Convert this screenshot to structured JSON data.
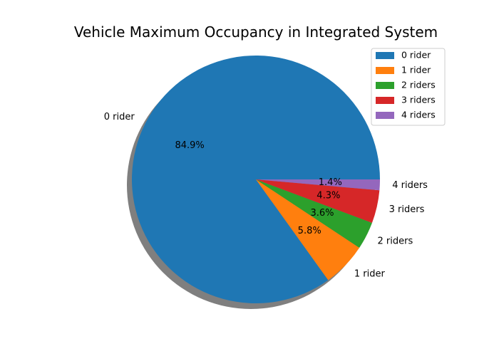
{
  "chart_data": {
    "type": "pie",
    "title": "Vehicle Maximum Occupancy in Integrated System",
    "categories": [
      "0 rider",
      "1 rider",
      "2 riders",
      "3 riders",
      "4 riders"
    ],
    "values": [
      84.9,
      5.8,
      3.6,
      4.3,
      1.4
    ],
    "value_labels": [
      "84.9%",
      "5.8%",
      "3.6%",
      "4.3%",
      "1.4%"
    ],
    "colors": [
      "#1f77b4",
      "#ff7f0e",
      "#2ca02c",
      "#d62728",
      "#9467bd"
    ],
    "shadow": true,
    "start_angle": 0,
    "legend": "top-right"
  }
}
